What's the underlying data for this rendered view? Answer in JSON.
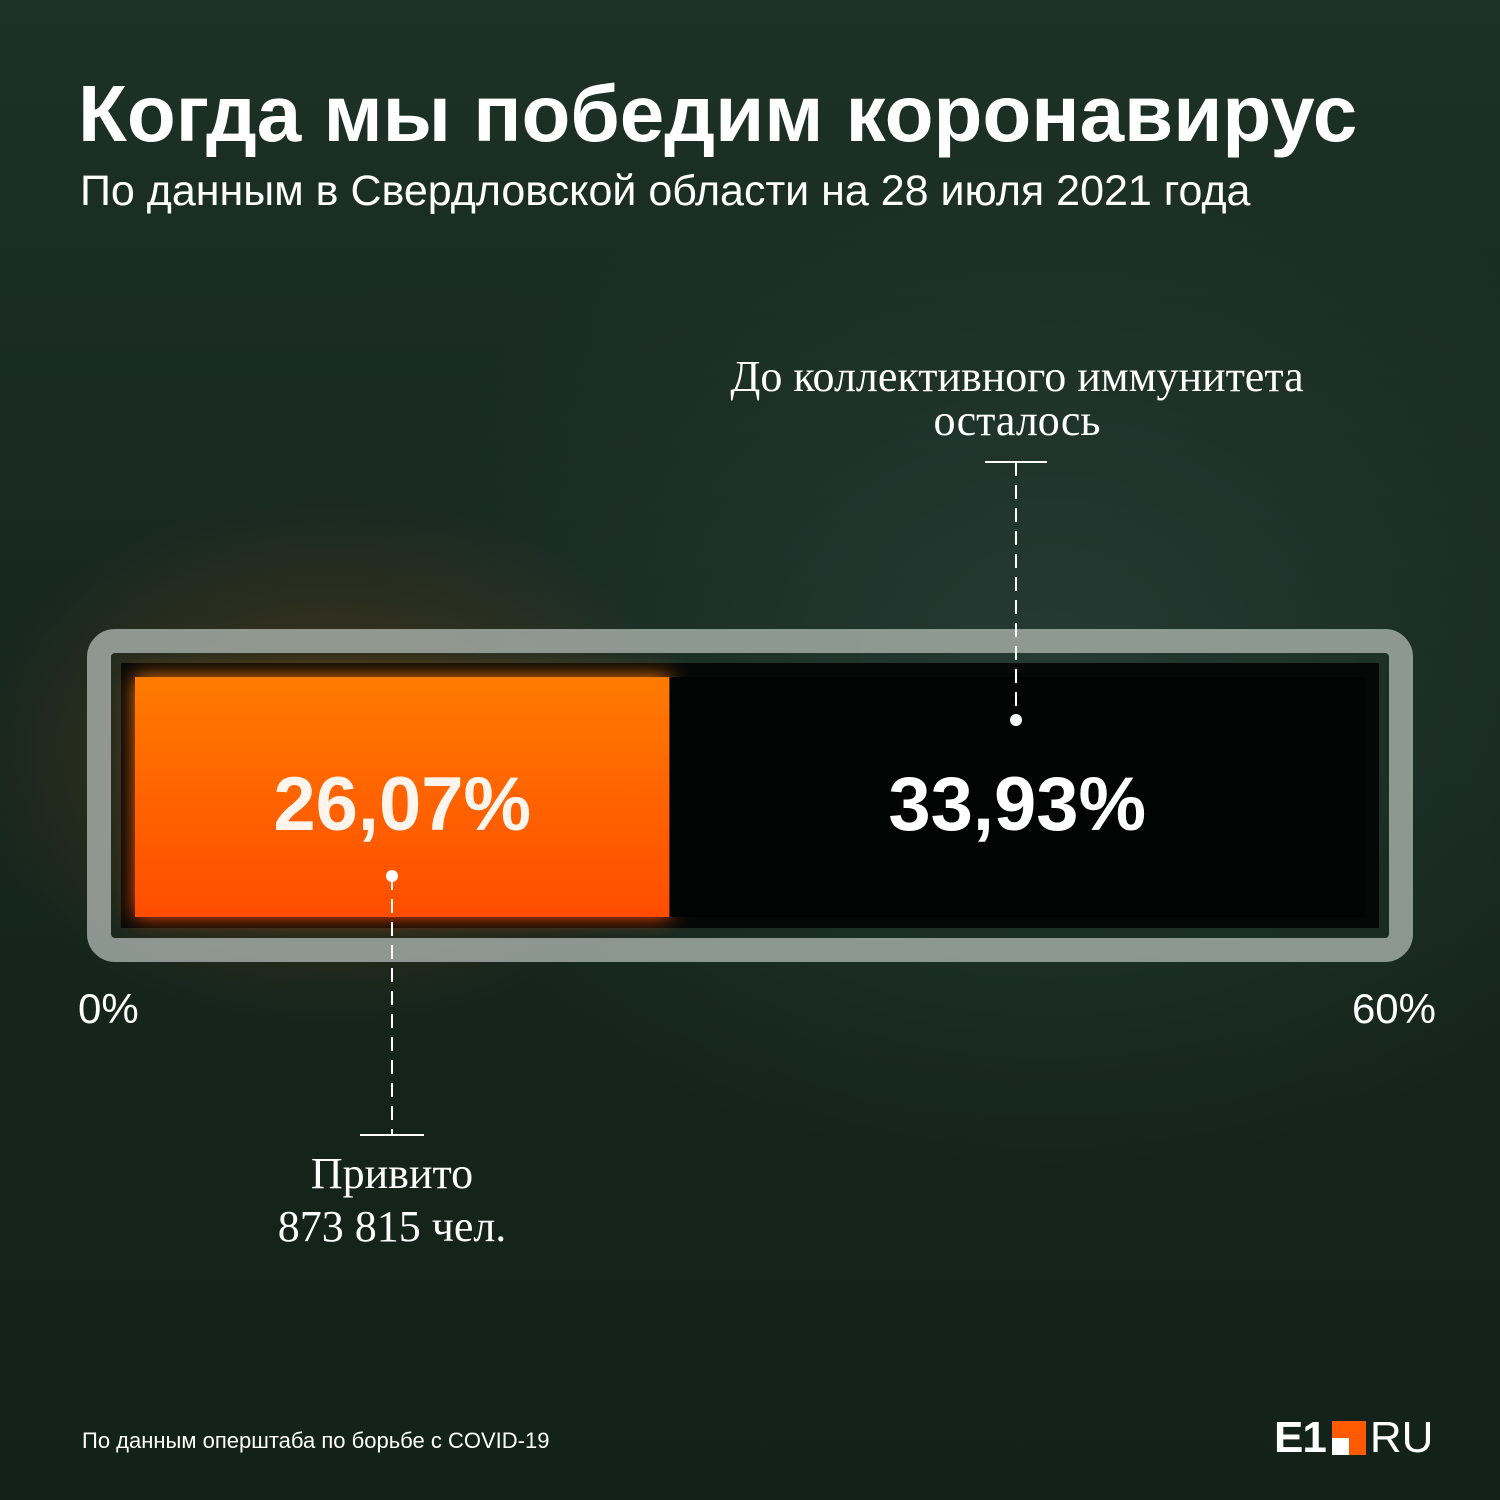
{
  "title": "Когда мы победим коронавирус",
  "subtitle": "По данным в Свердловской области на 28 июля 2021 года",
  "source": "По данным оперштаба по борьбе с COVID-19",
  "logo": {
    "e1": "E1",
    "ru": "RU"
  },
  "colors": {
    "vaccinated": "#ff5a00",
    "remaining": "#050807",
    "frame": "#9aa39d"
  },
  "chart_data": {
    "type": "bar",
    "orientation": "horizontal-stacked",
    "xlim": [
      0,
      60
    ],
    "axis_labels": {
      "min": "0%",
      "max": "60%"
    },
    "segments": [
      {
        "value": 26.07,
        "label": "26,07%",
        "caption": [
          "Привито",
          "873 815 чел."
        ]
      },
      {
        "value": 33.93,
        "label": "33,93%",
        "caption": [
          "До коллективного иммунитета",
          "осталось"
        ]
      }
    ]
  }
}
